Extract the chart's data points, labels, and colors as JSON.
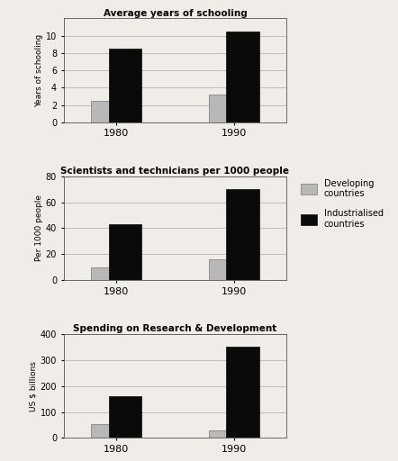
{
  "chart1": {
    "title": "Average years of schooling",
    "ylabel": "Years of schooling",
    "years": [
      "1980",
      "1990"
    ],
    "developing": [
      2.5,
      3.2
    ],
    "industrialised": [
      8.5,
      10.5
    ],
    "ylim": [
      0,
      12
    ],
    "yticks": [
      0,
      2,
      4,
      6,
      8,
      10
    ]
  },
  "chart2": {
    "title": "Scientists and technicians per 1000 people",
    "ylabel": "Per 1000 people",
    "years": [
      "1980",
      "1990"
    ],
    "developing": [
      10,
      16
    ],
    "industrialised": [
      43,
      70
    ],
    "ylim": [
      0,
      80
    ],
    "yticks": [
      0,
      20,
      40,
      60,
      80
    ]
  },
  "chart3": {
    "title": "Spending on Research & Development",
    "ylabel": "US $ billions",
    "years": [
      "1980",
      "1990"
    ],
    "developing": [
      55,
      30
    ],
    "industrialised": [
      160,
      350
    ],
    "ylim": [
      0,
      400
    ],
    "yticks": [
      0,
      100,
      200,
      300,
      400
    ]
  },
  "developing_color": "#b8b8b8",
  "industrialised_color": "#0a0a0a",
  "legend_labels": [
    "Developing\ncountries",
    "Industrialised\ncountries"
  ],
  "bar_width": 0.28,
  "background_color": "#f0ede8"
}
